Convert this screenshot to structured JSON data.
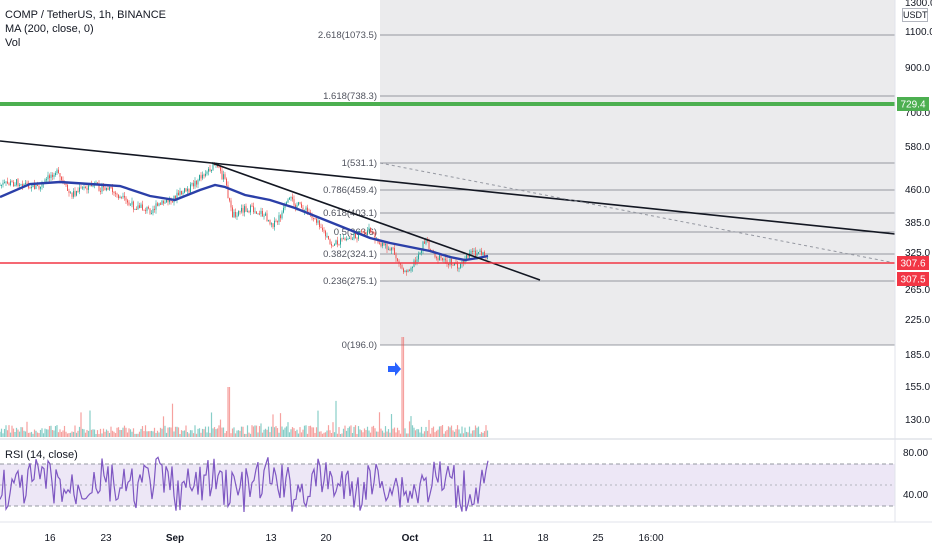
{
  "header": {
    "symbol_line": "COMP / TetherUS, 1h, BINANCE",
    "ma_line": "MA (200, close, 0)",
    "vol_line": "Vol"
  },
  "price_axis": {
    "currency": "USDT",
    "top_label": "1300.0",
    "labels": [
      "1100.0",
      "900.0",
      "700.0",
      "580.0",
      "460.0",
      "385.0",
      "325.0",
      "265.0",
      "225.0",
      "185.0",
      "155.0",
      "130.0"
    ]
  },
  "price_markers": [
    {
      "label": "729.4",
      "color": "#4caf50"
    },
    {
      "label": "307.6",
      "color": "#f23645"
    },
    {
      "label": "307.5",
      "color": "#f23645"
    }
  ],
  "rsi": {
    "legend": "RSI (14, close)",
    "axis_labels": [
      "80.00",
      "40.00"
    ],
    "upper_band": 70,
    "lower_band": 30,
    "middle": 50
  },
  "time_axis": {
    "labels": [
      "16",
      "23",
      "Sep",
      "13",
      "20",
      "Oct",
      "11",
      "18",
      "25",
      "16:00"
    ]
  },
  "fib_levels": [
    {
      "label": "2.618(1073.5)",
      "price": 1073.5
    },
    {
      "label": "1.618(738.3)",
      "price": 738.3
    },
    {
      "label": "1(531.1)",
      "price": 531.1
    },
    {
      "label": "0.786(459.4)",
      "price": 459.4
    },
    {
      "label": "0.618(403.1)",
      "price": 403.1
    },
    {
      "label": "0.5(363.6)",
      "price": 363.6
    },
    {
      "label": "0.382(324.1)",
      "price": 324.1
    },
    {
      "label": "0.236(275.1)",
      "price": 275.1
    },
    {
      "label": "0(196.0)",
      "price": 196.0
    }
  ],
  "horizontal_lines": [
    {
      "name": "support-green",
      "price": 729.4,
      "color": "#4caf50"
    },
    {
      "name": "support-red",
      "price": 307.6,
      "color": "#f23645"
    }
  ],
  "colors": {
    "ma": "#2b3fa8",
    "rsi": "#7e57c2",
    "rsi_band_fill": "#ede7f6",
    "fib_zone": "#ebebed",
    "candle_up": "#26a69a",
    "candle_down": "#ef5350",
    "arrow": "#2962ff"
  },
  "annotations": {
    "arrow_icon": "arrow-right-icon"
  }
}
